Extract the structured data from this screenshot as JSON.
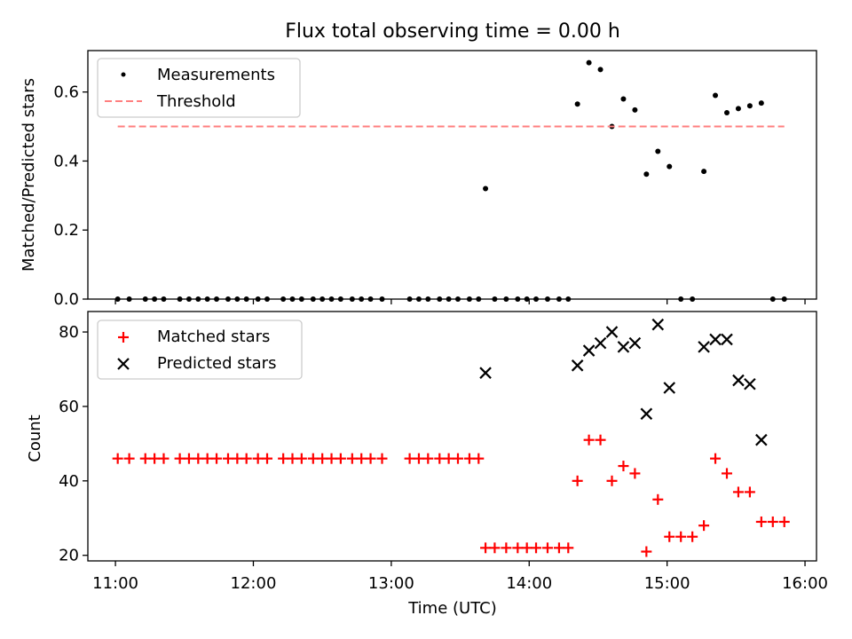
{
  "figure": {
    "title": "Flux total observing time = 0.00 h",
    "xlabel": "Time (UTC)"
  },
  "chart_data": [
    {
      "type": "scatter",
      "panel": "top",
      "ylabel": "Matched/Predicted stars",
      "xlim": [
        "10:48",
        "16:05"
      ],
      "ylim": [
        0,
        0.72
      ],
      "yticks": [
        0.0,
        0.2,
        0.4,
        0.6
      ],
      "ytick_labels": [
        "0.0",
        "0.2",
        "0.4",
        "0.6"
      ],
      "legend_position": "upper-left",
      "series": [
        {
          "name": "Measurements",
          "color": "#000000",
          "marker": "dot",
          "points": [
            [
              "11:01",
              0
            ],
            [
              "11:06",
              0
            ],
            [
              "11:13",
              0
            ],
            [
              "11:17",
              0
            ],
            [
              "11:21",
              0
            ],
            [
              "11:28",
              0
            ],
            [
              "11:32",
              0
            ],
            [
              "11:36",
              0
            ],
            [
              "11:40",
              0
            ],
            [
              "11:44",
              0
            ],
            [
              "11:49",
              0
            ],
            [
              "11:53",
              0
            ],
            [
              "11:57",
              0
            ],
            [
              "12:02",
              0
            ],
            [
              "12:06",
              0
            ],
            [
              "12:13",
              0
            ],
            [
              "12:17",
              0
            ],
            [
              "12:21",
              0
            ],
            [
              "12:26",
              0
            ],
            [
              "12:30",
              0
            ],
            [
              "12:34",
              0
            ],
            [
              "12:38",
              0
            ],
            [
              "12:43",
              0
            ],
            [
              "12:47",
              0
            ],
            [
              "12:51",
              0
            ],
            [
              "12:56",
              0
            ],
            [
              "13:08",
              0
            ],
            [
              "13:12",
              0
            ],
            [
              "13:16",
              0
            ],
            [
              "13:21",
              0
            ],
            [
              "13:25",
              0
            ],
            [
              "13:29",
              0
            ],
            [
              "13:34",
              0
            ],
            [
              "13:38",
              0
            ],
            [
              "13:41",
              0.32
            ],
            [
              "13:45",
              0
            ],
            [
              "13:50",
              0
            ],
            [
              "13:55",
              0
            ],
            [
              "13:59",
              0
            ],
            [
              "14:03",
              0
            ],
            [
              "14:08",
              0
            ],
            [
              "14:13",
              0
            ],
            [
              "14:17",
              0
            ],
            [
              "14:21",
              0.565
            ],
            [
              "14:26",
              0.685
            ],
            [
              "14:31",
              0.665
            ],
            [
              "14:36",
              0.5
            ],
            [
              "14:41",
              0.58
            ],
            [
              "14:46",
              0.548
            ],
            [
              "14:51",
              0.362
            ],
            [
              "14:56",
              0.428
            ],
            [
              "15:01",
              0.384
            ],
            [
              "15:06",
              0
            ],
            [
              "15:11",
              0
            ],
            [
              "15:16",
              0.37
            ],
            [
              "15:21",
              0.59
            ],
            [
              "15:26",
              0.54
            ],
            [
              "15:31",
              0.552
            ],
            [
              "15:36",
              0.56
            ],
            [
              "15:41",
              0.568
            ],
            [
              "15:46",
              0
            ],
            [
              "15:51",
              0
            ]
          ]
        },
        {
          "name": "Threshold",
          "color": "#ff7f7f",
          "style": "dashed",
          "points": [
            [
              "11:01",
              0.5
            ],
            [
              "15:51",
              0.5
            ]
          ]
        }
      ]
    },
    {
      "type": "scatter",
      "panel": "bottom",
      "ylabel": "Count",
      "xlim": [
        "10:48",
        "16:05"
      ],
      "ylim": [
        18.5,
        85.5
      ],
      "yticks": [
        20,
        40,
        60,
        80
      ],
      "ytick_labels": [
        "20",
        "40",
        "60",
        "80"
      ],
      "xticks": [
        "11:00",
        "12:00",
        "13:00",
        "14:00",
        "15:00",
        "16:00"
      ],
      "xtick_labels": [
        "11:00",
        "12:00",
        "13:00",
        "14:00",
        "15:00",
        "16:00"
      ],
      "legend_position": "upper-left",
      "series": [
        {
          "name": "Matched stars",
          "color": "#ff0000",
          "marker": "plus",
          "points": [
            [
              "11:01",
              46
            ],
            [
              "11:06",
              46
            ],
            [
              "11:13",
              46
            ],
            [
              "11:17",
              46
            ],
            [
              "11:21",
              46
            ],
            [
              "11:28",
              46
            ],
            [
              "11:32",
              46
            ],
            [
              "11:36",
              46
            ],
            [
              "11:40",
              46
            ],
            [
              "11:44",
              46
            ],
            [
              "11:49",
              46
            ],
            [
              "11:53",
              46
            ],
            [
              "11:57",
              46
            ],
            [
              "12:02",
              46
            ],
            [
              "12:06",
              46
            ],
            [
              "12:13",
              46
            ],
            [
              "12:17",
              46
            ],
            [
              "12:21",
              46
            ],
            [
              "12:26",
              46
            ],
            [
              "12:30",
              46
            ],
            [
              "12:34",
              46
            ],
            [
              "12:38",
              46
            ],
            [
              "12:43",
              46
            ],
            [
              "12:47",
              46
            ],
            [
              "12:51",
              46
            ],
            [
              "12:56",
              46
            ],
            [
              "13:08",
              46
            ],
            [
              "13:12",
              46
            ],
            [
              "13:16",
              46
            ],
            [
              "13:21",
              46
            ],
            [
              "13:25",
              46
            ],
            [
              "13:29",
              46
            ],
            [
              "13:34",
              46
            ],
            [
              "13:38",
              46
            ],
            [
              "13:41",
              22
            ],
            [
              "13:45",
              22
            ],
            [
              "13:50",
              22
            ],
            [
              "13:55",
              22
            ],
            [
              "13:59",
              22
            ],
            [
              "14:03",
              22
            ],
            [
              "14:08",
              22
            ],
            [
              "14:13",
              22
            ],
            [
              "14:17",
              22
            ],
            [
              "14:21",
              40
            ],
            [
              "14:26",
              51
            ],
            [
              "14:31",
              51
            ],
            [
              "14:36",
              40
            ],
            [
              "14:41",
              44
            ],
            [
              "14:46",
              42
            ],
            [
              "14:51",
              21
            ],
            [
              "14:56",
              35
            ],
            [
              "15:01",
              25
            ],
            [
              "15:06",
              25
            ],
            [
              "15:11",
              25
            ],
            [
              "15:16",
              28
            ],
            [
              "15:21",
              46
            ],
            [
              "15:26",
              42
            ],
            [
              "15:31",
              37
            ],
            [
              "15:36",
              37
            ],
            [
              "15:41",
              29
            ],
            [
              "15:46",
              29
            ],
            [
              "15:51",
              29
            ]
          ]
        },
        {
          "name": "Predicted stars",
          "color": "#000000",
          "marker": "x",
          "points": [
            [
              "13:41",
              69
            ],
            [
              "14:21",
              71
            ],
            [
              "14:26",
              75
            ],
            [
              "14:31",
              77
            ],
            [
              "14:36",
              80
            ],
            [
              "14:41",
              76
            ],
            [
              "14:46",
              77
            ],
            [
              "14:51",
              58
            ],
            [
              "14:56",
              82
            ],
            [
              "15:01",
              65
            ],
            [
              "15:16",
              76
            ],
            [
              "15:21",
              78
            ],
            [
              "15:26",
              78
            ],
            [
              "15:31",
              67
            ],
            [
              "15:36",
              66
            ],
            [
              "15:41",
              51
            ]
          ]
        }
      ]
    }
  ]
}
